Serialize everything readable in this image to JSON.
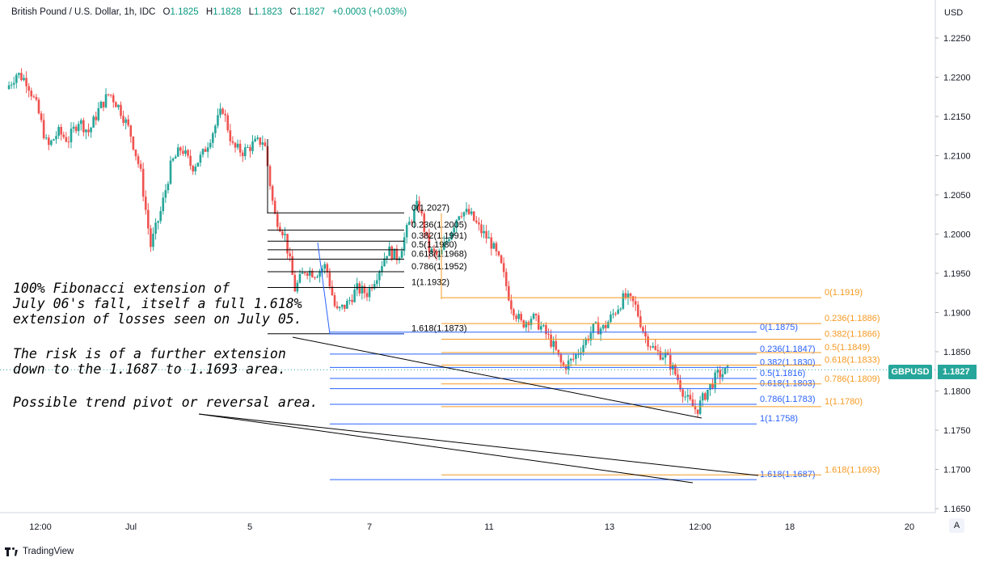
{
  "header": {
    "title": "British Pound / U.S. Dollar, 1h, IDC",
    "o_label": "O",
    "o_value": "1.1825",
    "h_label": "H",
    "h_value": "1.1828",
    "l_label": "L",
    "l_value": "1.1823",
    "c_label": "C",
    "c_value": "1.1827",
    "change": "+0.0003 (+0.03%)"
  },
  "currency_label": "USD",
  "symbol_badge": "GBPUSD",
  "last_price": "1.1827",
  "auto_button": "A",
  "footer": {
    "brand": "TradingView"
  },
  "colors": {
    "up": "#26a69a",
    "down": "#ef5350",
    "fib_black": "#000000",
    "fib_blue": "#2962ff",
    "fib_orange": "#f59a23"
  },
  "annotations": [
    {
      "lines": [
        "100% Fibonacci extension of",
        "July 06's fall, itself a full 1.618%",
        "extension of losses seen on July 05."
      ]
    },
    {
      "lines": [
        "The risk is of a further extension",
        "down to the 1.1687 to 1.1693 area."
      ]
    },
    {
      "lines": [
        "Possible trend pivot or reversal area."
      ]
    }
  ],
  "chart_data": {
    "type": "candlestick",
    "title": "British Pound / U.S. Dollar, 1h, IDC",
    "ylabel": "USD",
    "ylim": [
      1.1635,
      1.229
    ],
    "y_ticks": [
      "1.2250",
      "1.2200",
      "1.2150",
      "1.2100",
      "1.2050",
      "1.2000",
      "1.1950",
      "1.1900",
      "1.1850",
      "1.1800",
      "1.1750",
      "1.1700",
      "1.1650"
    ],
    "x_ticks": [
      "12:00",
      "Jul",
      "5",
      "7",
      "11",
      "13",
      "12:00",
      "18",
      "20"
    ],
    "price_path": [
      [
        0,
        1.2185
      ],
      [
        1,
        1.2205
      ],
      [
        2,
        1.2195
      ],
      [
        3,
        1.216
      ],
      [
        4,
        1.211
      ],
      [
        5,
        1.213
      ],
      [
        6,
        1.212
      ],
      [
        7,
        1.2145
      ],
      [
        8,
        1.213
      ],
      [
        9,
        1.216
      ],
      [
        10,
        1.218
      ],
      [
        11,
        1.216
      ],
      [
        12,
        1.213
      ],
      [
        13,
        1.208
      ],
      [
        14,
        1.1985
      ],
      [
        15,
        1.203
      ],
      [
        16,
        1.209
      ],
      [
        17,
        1.211
      ],
      [
        18,
        1.2085
      ],
      [
        19,
        1.21
      ],
      [
        20,
        1.213
      ],
      [
        21,
        1.216
      ],
      [
        22,
        1.211
      ],
      [
        23,
        1.2105
      ],
      [
        24,
        1.2115
      ],
      [
        25,
        1.212
      ],
      [
        26,
        1.2025
      ],
      [
        27,
        1.2
      ],
      [
        28,
        1.193
      ],
      [
        29,
        1.1955
      ],
      [
        30,
        1.195
      ],
      [
        31,
        1.196
      ],
      [
        32,
        1.19
      ],
      [
        33,
        1.191
      ],
      [
        34,
        1.193
      ],
      [
        35,
        1.1925
      ],
      [
        36,
        1.195
      ],
      [
        37,
        1.198
      ],
      [
        38,
        1.197
      ],
      [
        39,
        1.201
      ],
      [
        40,
        1.204
      ],
      [
        41,
        1.198
      ],
      [
        42,
        1.197
      ],
      [
        43,
        1.2
      ],
      [
        44,
        1.203
      ],
      [
        45,
        1.2025
      ],
      [
        46,
        1.2005
      ],
      [
        47,
        1.199
      ],
      [
        48,
        1.196
      ],
      [
        49,
        1.191
      ],
      [
        50,
        1.1885
      ],
      [
        51,
        1.1895
      ],
      [
        52,
        1.188
      ],
      [
        53,
        1.186
      ],
      [
        54,
        1.183
      ],
      [
        55,
        1.184
      ],
      [
        56,
        1.186
      ],
      [
        57,
        1.188
      ],
      [
        58,
        1.188
      ],
      [
        59,
        1.19
      ],
      [
        60,
        1.192
      ],
      [
        61,
        1.191
      ],
      [
        62,
        1.187
      ],
      [
        63,
        1.185
      ],
      [
        64,
        1.1845
      ],
      [
        65,
        1.182
      ],
      [
        66,
        1.179
      ],
      [
        67,
        1.1775
      ],
      [
        68,
        1.18
      ],
      [
        69,
        1.182
      ],
      [
        70,
        1.1825
      ]
    ],
    "fibonacci_sets": [
      {
        "color": "black",
        "levels": [
          {
            "ratio": "0",
            "value": 1.2027
          },
          {
            "ratio": "0.236",
            "value": 1.2005
          },
          {
            "ratio": "0.382",
            "value": 1.1991
          },
          {
            "ratio": "0.5",
            "value": 1.198
          },
          {
            "ratio": "0.618",
            "value": 1.1968
          },
          {
            "ratio": "0.786",
            "value": 1.1952
          },
          {
            "ratio": "1",
            "value": 1.1932
          },
          {
            "ratio": "1.618",
            "value": 1.1873
          }
        ]
      },
      {
        "color": "blue",
        "levels": [
          {
            "ratio": "0",
            "value": 1.1875
          },
          {
            "ratio": "0.236",
            "value": 1.1847
          },
          {
            "ratio": "0.382",
            "value": 1.183
          },
          {
            "ratio": "0.5",
            "value": 1.1816
          },
          {
            "ratio": "0.618",
            "value": 1.1803
          },
          {
            "ratio": "0.786",
            "value": 1.1783
          },
          {
            "ratio": "1",
            "value": 1.1758
          },
          {
            "ratio": "1.618",
            "value": 1.1687
          }
        ]
      },
      {
        "color": "orange",
        "levels": [
          {
            "ratio": "0",
            "value": 1.1919
          },
          {
            "ratio": "0.236",
            "value": 1.1886
          },
          {
            "ratio": "0.382",
            "value": 1.1866
          },
          {
            "ratio": "0.5",
            "value": 1.1849
          },
          {
            "ratio": "0.618",
            "value": 1.1833
          },
          {
            "ratio": "0.786",
            "value": 1.1809
          },
          {
            "ratio": "1",
            "value": 1.178
          },
          {
            "ratio": "1.618",
            "value": 1.1693
          }
        ]
      }
    ]
  }
}
